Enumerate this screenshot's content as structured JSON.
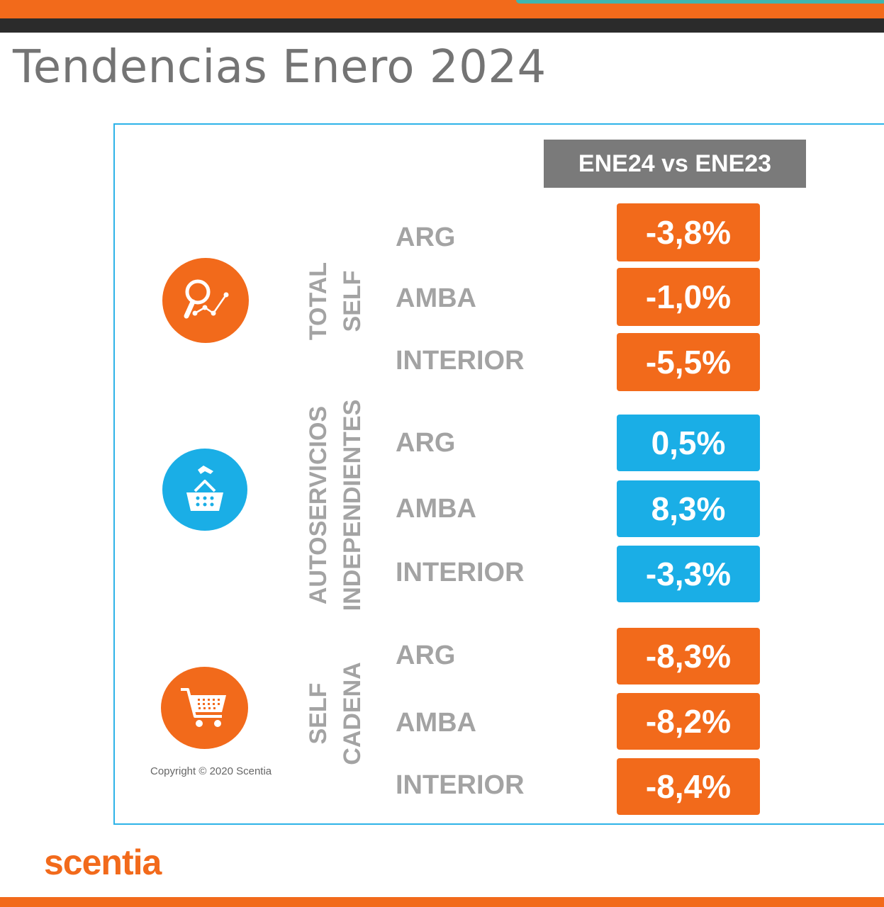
{
  "title": "Tendencias Enero 2024",
  "column_header": "ENE24 vs ENE23",
  "colors": {
    "orange": "#f26a1b",
    "blue": "#1aaee6",
    "frame": "#2db3e8",
    "label_gray": "#a3a3a3"
  },
  "groups": [
    {
      "label_lines": [
        "TOTAL",
        "SELF"
      ],
      "icon": "analytics-magnifier-icon",
      "rows": [
        {
          "region": "ARG",
          "value": "-3,8%"
        },
        {
          "region": "AMBA",
          "value": "-1,0%"
        },
        {
          "region": "INTERIOR",
          "value": "-5,5%"
        }
      ]
    },
    {
      "label_lines": [
        "AUTOSERVICIOS",
        "INDEPENDIENTES"
      ],
      "icon": "shopping-basket-icon",
      "rows": [
        {
          "region": "ARG",
          "value": "0,5%"
        },
        {
          "region": "AMBA",
          "value": "8,3%"
        },
        {
          "region": "INTERIOR",
          "value": "-3,3%"
        }
      ]
    },
    {
      "label_lines": [
        "SELF",
        "CADENA"
      ],
      "icon": "shopping-cart-icon",
      "rows": [
        {
          "region": "ARG",
          "value": "-8,3%"
        },
        {
          "region": "AMBA",
          "value": "-8,2%"
        },
        {
          "region": "INTERIOR",
          "value": "-8,4%"
        }
      ]
    }
  ],
  "copyright": "Copyright © 2020 Scentia",
  "brand": "scentia"
}
